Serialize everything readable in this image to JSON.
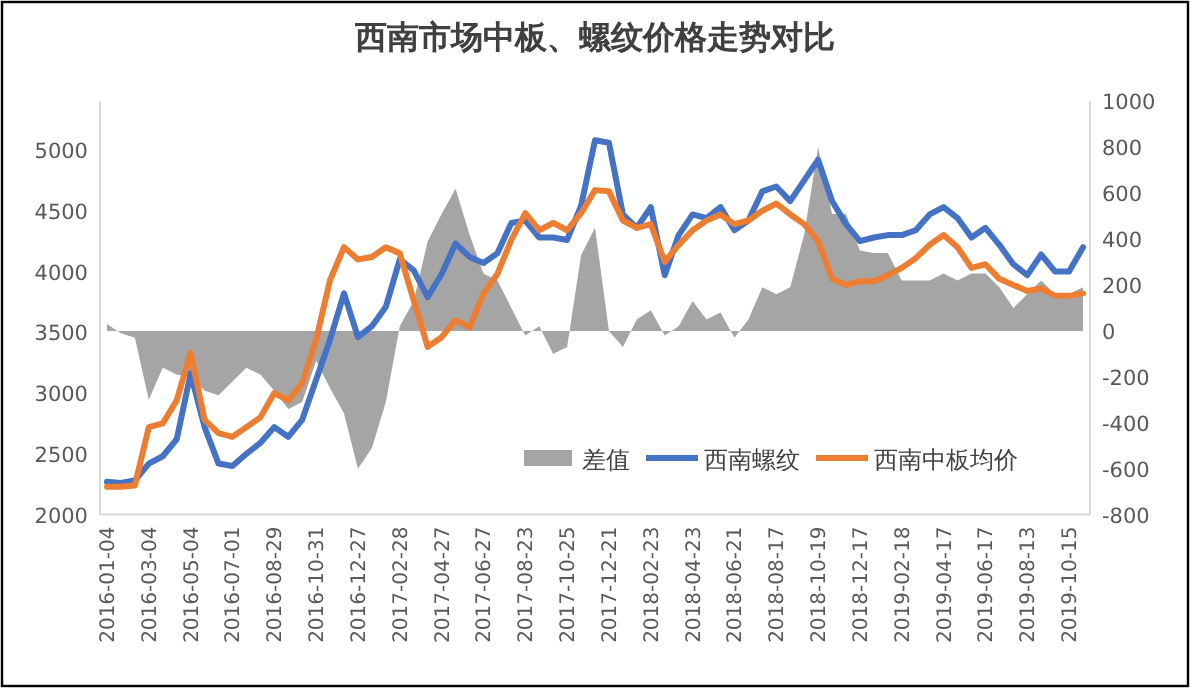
{
  "chart_data": {
    "type": "line",
    "title": "西南市场中板、螺纹价格走势对比",
    "categories": [
      "2016-01-04",
      null,
      null,
      "2016-03-04",
      null,
      null,
      "2016-05-04",
      null,
      null,
      "2016-07-01",
      null,
      null,
      "2016-08-29",
      null,
      null,
      "2016-10-31",
      null,
      null,
      "2016-12-27",
      null,
      null,
      "2017-02-28",
      null,
      null,
      "2017-04-27",
      null,
      null,
      "2017-06-27",
      null,
      null,
      "2017-08-23",
      null,
      null,
      "2017-10-25",
      null,
      null,
      "2017-12-21",
      null,
      null,
      "2018-02-23",
      null,
      null,
      "2018-04-23",
      null,
      null,
      "2018-06-21",
      null,
      null,
      "2018-08-17",
      null,
      null,
      "2018-10-19",
      null,
      null,
      "2018-12-17",
      null,
      null,
      "2019-02-18",
      null,
      null,
      "2019-04-17",
      null,
      null,
      "2019-06-17",
      null,
      null,
      "2019-08-13",
      null,
      null,
      "2019-10-15",
      null
    ],
    "series": [
      {
        "name": "差值",
        "type": "area",
        "axis": "y2",
        "color": "#a5a5a5",
        "values": [
          30,
          -10,
          -30,
          -300,
          -160,
          -190,
          -200,
          -260,
          -280,
          -220,
          -160,
          -190,
          -260,
          -340,
          -310,
          -130,
          -250,
          -360,
          -600,
          -510,
          -310,
          20,
          130,
          390,
          510,
          620,
          420,
          250,
          220,
          100,
          -20,
          20,
          -100,
          -70,
          330,
          450,
          0,
          -70,
          50,
          90,
          -20,
          20,
          130,
          50,
          80,
          -30,
          50,
          190,
          160,
          190,
          420,
          800,
          510,
          510,
          350,
          340,
          340,
          220,
          220,
          220,
          250,
          220,
          250,
          250,
          190,
          100,
          160,
          220,
          160,
          160,
          190
        ]
      },
      {
        "name": "西南螺纹",
        "color": "#4472c4",
        "values": [
          2270,
          2260,
          2280,
          2420,
          2480,
          2620,
          3160,
          2720,
          2420,
          2400,
          2500,
          2590,
          2720,
          2640,
          2780,
          3110,
          3440,
          3820,
          3460,
          3550,
          3710,
          4100,
          4010,
          3790,
          3980,
          4230,
          4120,
          4070,
          4150,
          4400,
          4420,
          4280,
          4280,
          4260,
          4540,
          5080,
          5060,
          4470,
          4360,
          4530,
          3970,
          4300,
          4470,
          4440,
          4530,
          4340,
          4420,
          4660,
          4700,
          4580,
          4750,
          4920,
          4580,
          4390,
          4250,
          4280,
          4300,
          4300,
          4340,
          4470,
          4530,
          4440,
          4280,
          4360,
          4220,
          4060,
          3970,
          4140,
          4000,
          4000,
          4200
        ]
      },
      {
        "name": "西南中板均价",
        "color": "#ed7d31",
        "values": [
          2230,
          2230,
          2240,
          2720,
          2750,
          2940,
          3330,
          2780,
          2670,
          2640,
          2720,
          2800,
          3000,
          2940,
          3080,
          3440,
          3930,
          4200,
          4100,
          4120,
          4200,
          4150,
          3760,
          3380,
          3460,
          3600,
          3540,
          3820,
          3980,
          4260,
          4480,
          4340,
          4400,
          4340,
          4480,
          4670,
          4660,
          4420,
          4360,
          4390,
          4080,
          4220,
          4340,
          4420,
          4470,
          4390,
          4420,
          4500,
          4560,
          4470,
          4390,
          4250,
          3940,
          3890,
          3920,
          3920,
          3970,
          4030,
          4110,
          4220,
          4300,
          4200,
          4030,
          4060,
          3940,
          3890,
          3840,
          3860,
          3800,
          3800,
          3820
        ]
      }
    ],
    "ylim": [
      2000,
      5400
    ],
    "yticks": [
      2000,
      2500,
      3000,
      3500,
      4000,
      4500,
      5000
    ],
    "y2lim": [
      -800,
      1000
    ],
    "y2ticks": [
      -800,
      -600,
      -400,
      -200,
      0,
      200,
      400,
      600,
      800,
      1000
    ],
    "legend": "bottom right",
    "grid": false
  }
}
